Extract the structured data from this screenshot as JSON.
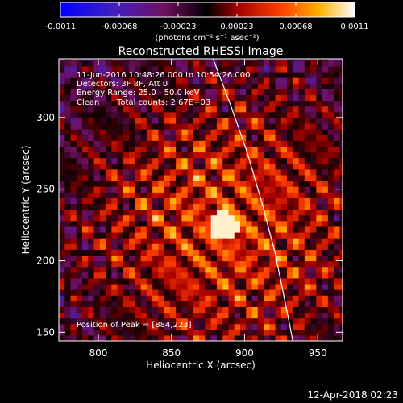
{
  "chart_data": {
    "type": "heatmap",
    "title": "Reconstructed RHESSI Image",
    "xlabel": "Heliocentric X (arcsec)",
    "ylabel": "Heliocentric Y (arcsec)",
    "xlim": [
      773,
      967
    ],
    "ylim": [
      144,
      341
    ],
    "x_ticks": [
      800,
      850,
      900,
      950
    ],
    "y_ticks": [
      150,
      200,
      250,
      300
    ],
    "colorbar": {
      "range": [
        -0.0011,
        0.0011
      ],
      "ticks": [
        "-0.0011",
        "-0.00068",
        "-0.00023",
        "0.00023",
        "0.00068",
        "0.0011"
      ],
      "units_text": "(photons cm⁻² s⁻¹ asec⁻²)",
      "colormap": "blue-purple-red-orange-yellow-white"
    },
    "annotations": {
      "time_range": "11-Jun-2016 10:48:26.000 to 10:54:26.000",
      "detectors": "Detectors: 3F 8F, Att 0",
      "energy_range": "Energy Range: 25.0 - 50.0 keV",
      "clean": "Clean",
      "total_counts": "Total counts: 2.67E+03",
      "peak_position": "Position of Peak = [884,223]"
    },
    "peak": [
      884,
      223
    ],
    "solar_limb": {
      "color": "#ffffff",
      "points": [
        [
          877,
          345
        ],
        [
          890,
          310
        ],
        [
          902,
          275
        ],
        [
          912,
          240
        ],
        [
          921,
          205
        ],
        [
          928,
          170
        ],
        [
          933,
          144
        ]
      ]
    }
  },
  "footer": {
    "timestamp": "12-Apr-2018 02:23"
  }
}
